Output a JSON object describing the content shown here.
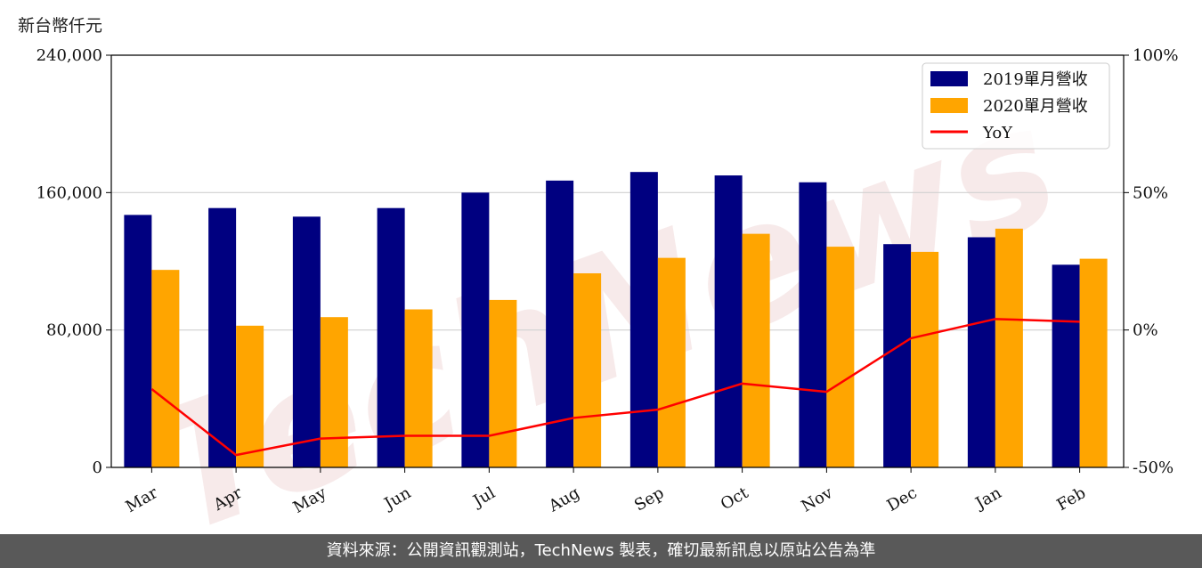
{
  "unit_label": "新台幣仟元",
  "watermark": "TechNews",
  "footer": "資料來源：公開資訊觀測站，TechNews 製表，確切最新訊息以原站公告為準",
  "colors": {
    "bar2019": "#000080",
    "bar2020": "#FFA500",
    "yoy": "#FF0000",
    "footer_bg": "#595959",
    "grid": "#d0d0d0"
  },
  "chart_data": {
    "type": "bar",
    "categories": [
      "Mar",
      "Apr",
      "May",
      "Jun",
      "Jul",
      "Aug",
      "Sep",
      "Oct",
      "Nov",
      "Dec",
      "Jan",
      "Feb"
    ],
    "series": [
      {
        "name": "2019單月營收",
        "type": "bar",
        "axis": "left",
        "values": [
          147000,
          151000,
          146000,
          151000,
          160000,
          167000,
          172000,
          170000,
          166000,
          130000,
          134000,
          118000
        ]
      },
      {
        "name": "2020單月營收",
        "type": "bar",
        "axis": "left",
        "values": [
          115000,
          82500,
          87500,
          92000,
          97500,
          113000,
          122000,
          136000,
          128500,
          125500,
          139000,
          121500
        ]
      },
      {
        "name": "YoY",
        "type": "line",
        "axis": "right",
        "values": [
          -21.5,
          -45.5,
          -39.5,
          -38.5,
          -38.5,
          -32,
          -29,
          -19.5,
          -22.5,
          -3,
          4,
          3
        ]
      }
    ],
    "ylim": [
      0,
      240000
    ],
    "yticks": [
      "0",
      "80,000",
      "160,000",
      "240,000"
    ],
    "y2lim": [
      -50,
      100
    ],
    "y2ticks": [
      "-50%",
      "0%",
      "50%",
      "100%"
    ],
    "grid": true,
    "legend_position": "top-right"
  }
}
